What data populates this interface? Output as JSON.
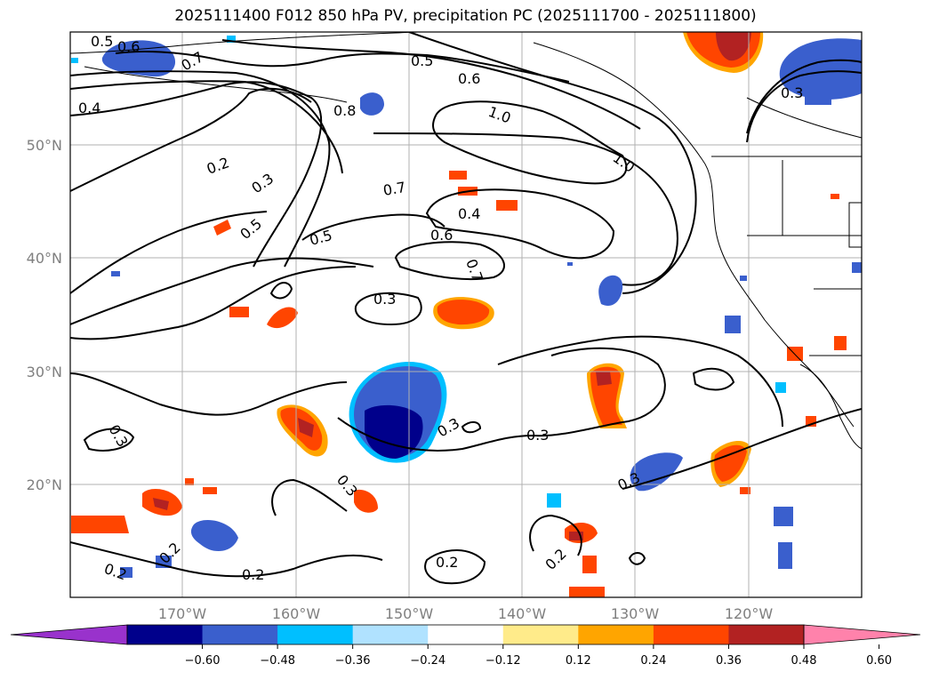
{
  "title": "2025111400 F012 850 hPa PV, precipitation PC (2025111700 - 2025111800)",
  "lat_labels": [
    "50°N",
    "40°N",
    "30°N",
    "20°N"
  ],
  "lon_labels": [
    "170°W",
    "160°W",
    "150°W",
    "140°W",
    "130°W",
    "120°W"
  ],
  "colorbar": {
    "ticks": [
      "−0.60",
      "−0.48",
      "−0.36",
      "−0.24",
      "−0.12",
      "0.12",
      "0.24",
      "0.36",
      "0.48",
      "0.60"
    ],
    "colors": [
      "#9932cc",
      "#00008b",
      "#3a5fcd",
      "#00bfff",
      "#b0e2ff",
      "#ffffff",
      "#ffeb8a",
      "#ffa500",
      "#ff4500",
      "#b22222",
      "#ff82ab"
    ]
  },
  "contour_labels": [
    "0.5",
    "0.6",
    "0.7",
    "0.4",
    "0.8",
    "0.5",
    "0.6",
    "1.0",
    "1.0",
    "0.2",
    "0.3",
    "0.7",
    "0.4",
    "0.5",
    "0.5",
    "0.6",
    "0.7",
    "0.3",
    "0.3",
    "0.3",
    "0.3",
    "0.3",
    "0.2",
    "0.2",
    "0.2",
    "0.2",
    "0.2",
    "0.3",
    "0.3"
  ]
}
